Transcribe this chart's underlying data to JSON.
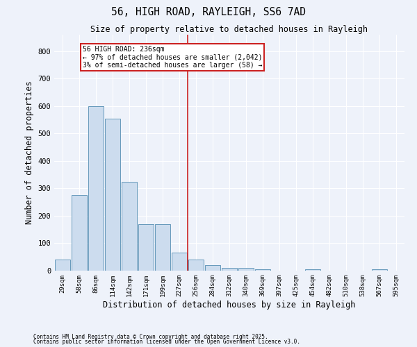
{
  "title": "56, HIGH ROAD, RAYLEIGH, SS6 7AD",
  "subtitle": "Size of property relative to detached houses in Rayleigh",
  "xlabel": "Distribution of detached houses by size in Rayleigh",
  "ylabel": "Number of detached properties",
  "bar_color": "#ccdcee",
  "bar_edge_color": "#6699bb",
  "background_color": "#eef2fa",
  "grid_color": "#ffffff",
  "bins": [
    "29sqm",
    "58sqm",
    "86sqm",
    "114sqm",
    "142sqm",
    "171sqm",
    "199sqm",
    "227sqm",
    "256sqm",
    "284sqm",
    "312sqm",
    "340sqm",
    "369sqm",
    "397sqm",
    "425sqm",
    "454sqm",
    "482sqm",
    "510sqm",
    "538sqm",
    "567sqm",
    "595sqm"
  ],
  "values": [
    40,
    275,
    600,
    555,
    325,
    170,
    170,
    65,
    40,
    20,
    10,
    10,
    5,
    0,
    0,
    5,
    0,
    0,
    0,
    5,
    0
  ],
  "property_line_color": "#cc2222",
  "ylim": [
    0,
    860
  ],
  "yticks": [
    0,
    100,
    200,
    300,
    400,
    500,
    600,
    700,
    800
  ],
  "annotation_text": "56 HIGH ROAD: 236sqm\n← 97% of detached houses are smaller (2,042)\n3% of semi-detached houses are larger (58) →",
  "annotation_box_color": "#ffffff",
  "annotation_box_edge": "#cc2222",
  "footer_line1": "Contains HM Land Registry data © Crown copyright and database right 2025.",
  "footer_line2": "Contains public sector information licensed under the Open Government Licence v3.0.",
  "figsize": [
    6.0,
    5.0
  ],
  "dpi": 100
}
